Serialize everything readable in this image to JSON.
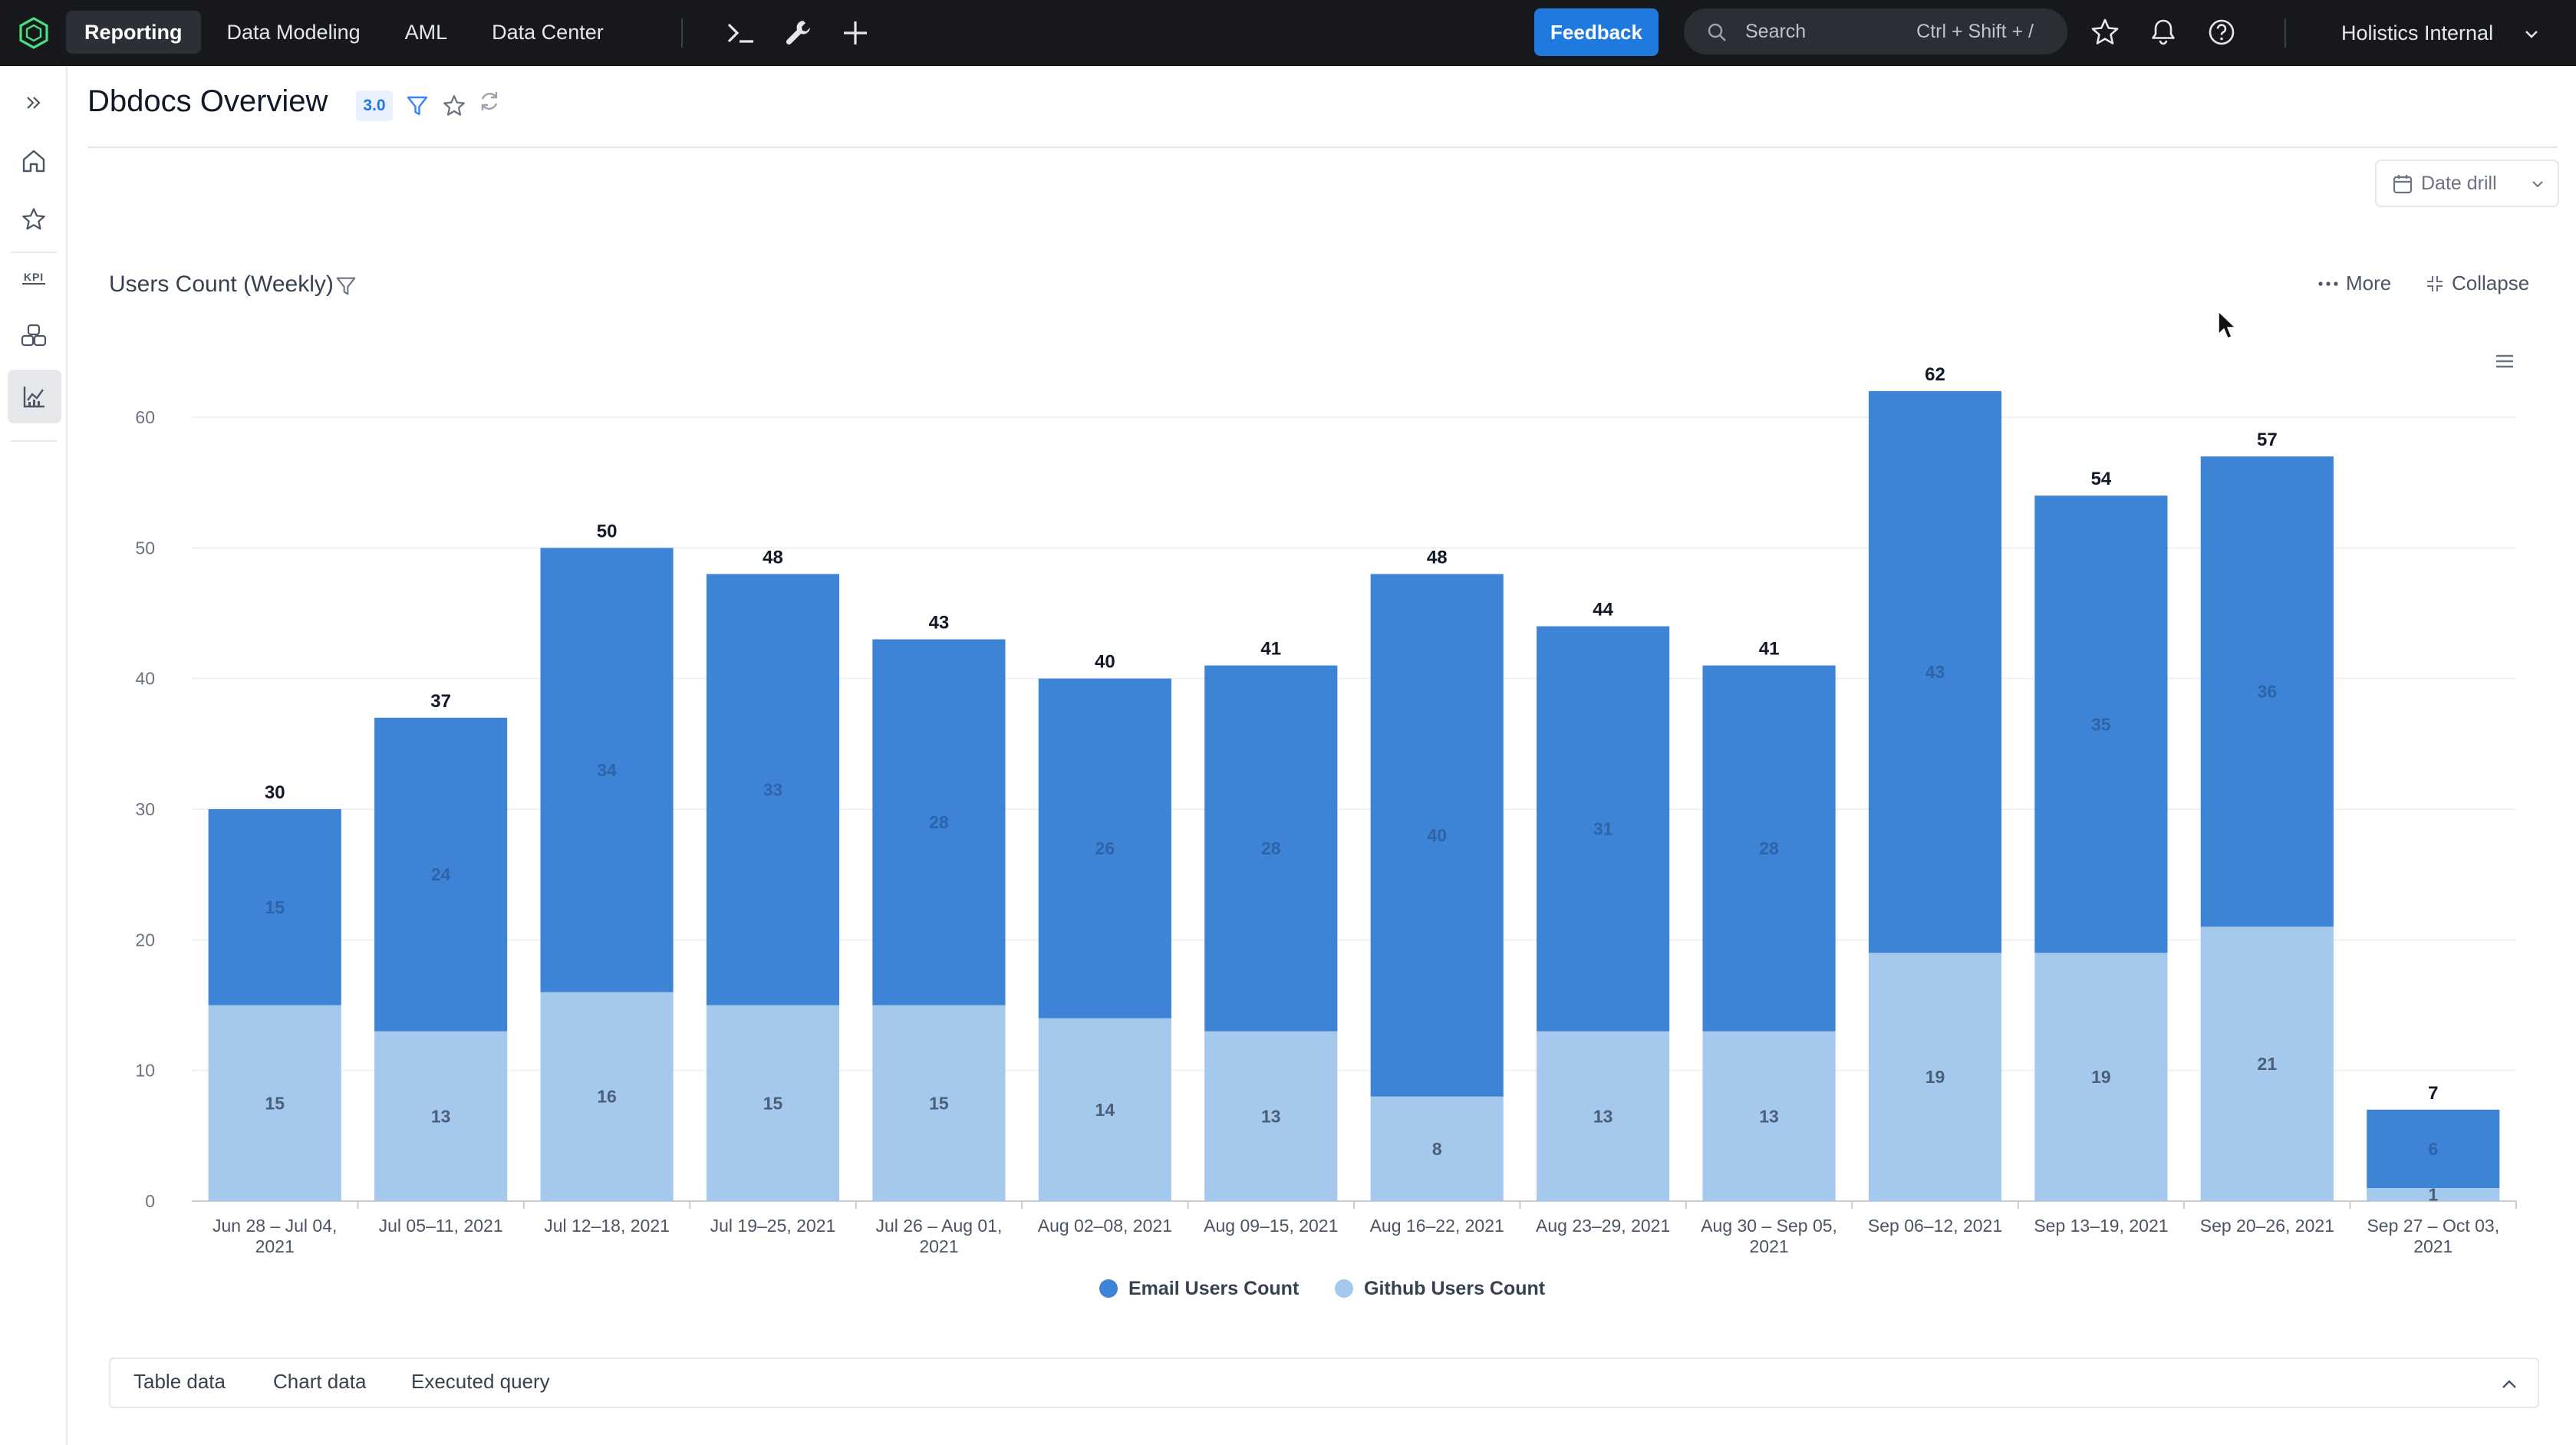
{
  "topnav": {
    "items": [
      {
        "label": "Reporting",
        "active": true
      },
      {
        "label": "Data Modeling"
      },
      {
        "label": "AML"
      },
      {
        "label": "Data Center"
      }
    ],
    "tools": [
      "terminal-icon",
      "wrench-icon",
      "plus-icon"
    ],
    "feedback_label": "Feedback",
    "search": {
      "placeholder": "Search",
      "shortcut": "Ctrl + Shift + /"
    },
    "right_icons": [
      "star-icon",
      "bell-icon",
      "help-icon"
    ],
    "workspace": "Holistics Internal"
  },
  "sidebar": {
    "icons": [
      "expand-icon",
      "home-icon",
      "star-icon",
      "kpi-icon",
      "datasets-icon",
      "reports-icon"
    ],
    "kpi_text": "KPI"
  },
  "header": {
    "title": "Dbdocs Overview",
    "version": "3.0",
    "date_drill_label": "Date drill"
  },
  "widget": {
    "title": "Users Count (Weekly)",
    "more_label": "More",
    "collapse_label": "Collapse",
    "tabs": [
      "Table data",
      "Chart data",
      "Executed query"
    ]
  },
  "colors": {
    "email": "#3d84d6",
    "github": "#a4c9ed",
    "accent": "#1f7ae0",
    "nav_bg": "#16181c"
  },
  "chart_data": {
    "type": "bar",
    "stacked": true,
    "title": "Users Count (Weekly)",
    "categories": [
      [
        "Jun 28 – Jul 04,",
        "2021"
      ],
      [
        "Jul 05–11, 2021"
      ],
      [
        "Jul 12–18, 2021"
      ],
      [
        "Jul 19–25, 2021"
      ],
      [
        "Jul 26 – Aug 01,",
        "2021"
      ],
      [
        "Aug 02–08, 2021"
      ],
      [
        "Aug 09–15, 2021"
      ],
      [
        "Aug 16–22, 2021"
      ],
      [
        "Aug 23–29, 2021"
      ],
      [
        "Aug 30 – Sep 05,",
        "2021"
      ],
      [
        "Sep 06–12, 2021"
      ],
      [
        "Sep 13–19, 2021"
      ],
      [
        "Sep 20–26, 2021"
      ],
      [
        "Sep 27 – Oct 03,",
        "2021"
      ]
    ],
    "series": [
      {
        "name": "Github Users Count",
        "values": [
          15,
          13,
          16,
          15,
          15,
          14,
          13,
          8,
          13,
          13,
          19,
          19,
          21,
          1
        ]
      },
      {
        "name": "Email Users Count",
        "values": [
          15,
          24,
          34,
          33,
          28,
          26,
          28,
          40,
          31,
          28,
          43,
          35,
          36,
          6
        ]
      }
    ],
    "totals": [
      30,
      37,
      50,
      48,
      43,
      40,
      41,
      48,
      44,
      41,
      62,
      54,
      57,
      7
    ],
    "legend": [
      "Email Users Count",
      "Github Users Count"
    ],
    "legend_position": "bottom-center",
    "ylim": [
      0,
      60
    ],
    "yticks": [
      0,
      10,
      20,
      30,
      40,
      50,
      60
    ],
    "grid": true
  }
}
